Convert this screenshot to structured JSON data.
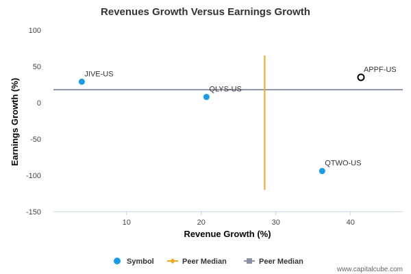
{
  "chart_data": {
    "type": "scatter",
    "title": "Revenues Growth Versus Earnings Growth",
    "xlabel": "Revenue Growth (%)",
    "ylabel": "Earnings Growth (%)",
    "xlim": [
      0.2,
      47
    ],
    "ylim": [
      -150,
      100
    ],
    "xticks": [
      10,
      20,
      30,
      40
    ],
    "yticks": [
      100,
      50,
      0,
      -50,
      -100,
      -150
    ],
    "x_gridlines": false,
    "y_gridlines": false,
    "points": [
      {
        "label": "JIVE-US",
        "x": 4.0,
        "y": 29,
        "style": "filled"
      },
      {
        "label": "QLYS-US",
        "x": 20.7,
        "y": 8,
        "style": "filled"
      },
      {
        "label": "QTWO-US",
        "x": 36.2,
        "y": -94,
        "style": "filled"
      },
      {
        "label": "APPF-US",
        "x": 41.4,
        "y": 35,
        "style": "hollow"
      }
    ],
    "peer_median_x": {
      "x": 28.5,
      "y_range": [
        -120,
        65
      ]
    },
    "peer_median_y": {
      "y": 18
    },
    "legend": [
      {
        "label": "Symbol",
        "marker": "circle",
        "color": "#1a9be6"
      },
      {
        "label": "Peer Median",
        "marker": "diamond-line",
        "color": "#f5a623"
      },
      {
        "label": "Peer Median",
        "marker": "square-line",
        "color": "#8a93a3"
      }
    ],
    "legend_position": "bottom",
    "colors": {
      "symbol": "#1a9be6",
      "hollow_marker": "#000000",
      "median_x_line": "#f5a623",
      "median_y_line": "#8a93a3",
      "axis": "#c0d0e0"
    }
  },
  "watermark": "www.capitalcube.com"
}
